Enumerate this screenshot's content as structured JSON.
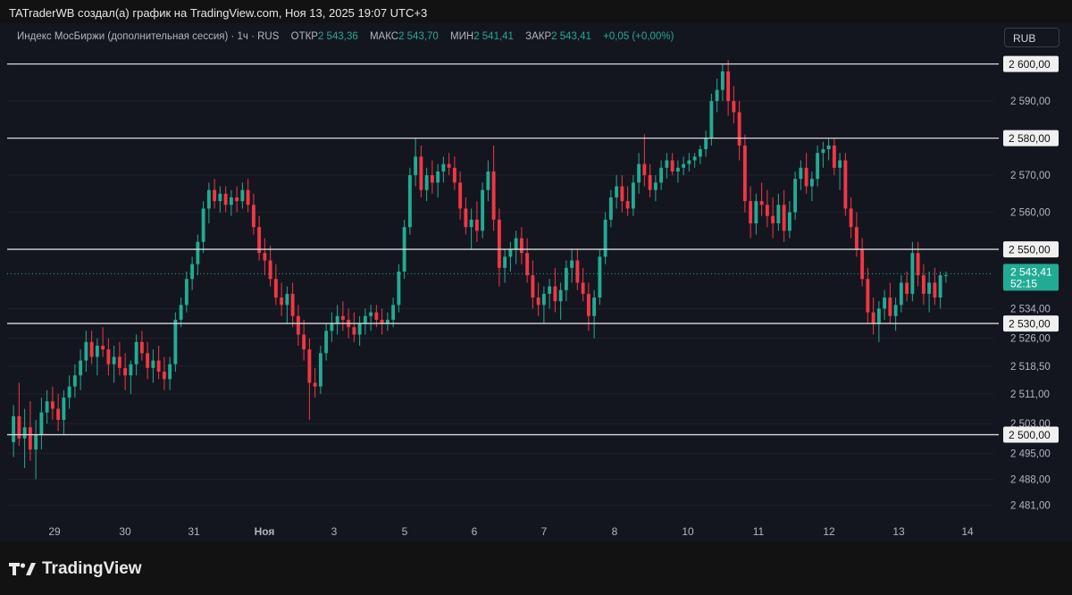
{
  "header": {
    "credit": "TATraderWB создал(а) график на TradingView.com, Ноя 13, 2025 19:07 UTC+3"
  },
  "legend": {
    "instrument": "Индекс МосБиржи (дополнительная сессия) · 1ч · RUS",
    "open_label": "ОТКР",
    "open_value": "2 543,36",
    "high_label": "МАКС",
    "high_value": "2 543,70",
    "low_label": "МИН",
    "low_value": "2 541,41",
    "close_label": "ЗАКР",
    "close_value": "2 543,41",
    "change": "+0,05 (+0,00%)"
  },
  "currency_button": "RUB",
  "brand": {
    "name": "TradingView",
    "logo_icon": "tradingview-logo-icon"
  },
  "colors": {
    "background": "#14161f",
    "up": "#22ab94",
    "down": "#f23645",
    "level_line": "#d9d9d9",
    "grid": "#1f222c",
    "axis_text": "#b2b5be"
  },
  "chart_data": {
    "type": "candlestick",
    "interval": "1ч",
    "ylim": [
      2477,
      2604
    ],
    "y_ticks": [
      "2 590,00",
      "2 570,00",
      "2 560,00",
      "2 534,00",
      "2 526,00",
      "2 518,50",
      "2 511,00",
      "2 503,00",
      "2 495,00",
      "2 488,00",
      "2 481,00"
    ],
    "x_ticks": [
      "29",
      "30",
      "31",
      "Ноя",
      "3",
      "5",
      "6",
      "7",
      "8",
      "10",
      "11",
      "12",
      "13",
      "14"
    ],
    "levels": [
      {
        "value": 2600,
        "label": "2 600,00"
      },
      {
        "value": 2580,
        "label": "2 580,00"
      },
      {
        "value": 2550,
        "label": "2 550,00"
      },
      {
        "value": 2530,
        "label": "2 530,00"
      },
      {
        "value": 2500,
        "label": "2 500,00"
      }
    ],
    "last_price": {
      "value": 2543.41,
      "label": "2 543,41",
      "countdown": "52:15"
    },
    "candles": [
      [
        2498,
        2508,
        2494,
        2505
      ],
      [
        2505,
        2514,
        2497,
        2499
      ],
      [
        2499,
        2507,
        2491,
        2502
      ],
      [
        2502,
        2509,
        2493,
        2496
      ],
      [
        2496,
        2504,
        2488,
        2500
      ],
      [
        2500,
        2510,
        2496,
        2506
      ],
      [
        2506,
        2512,
        2503,
        2509
      ],
      [
        2509,
        2513,
        2504,
        2507
      ],
      [
        2507,
        2511,
        2501,
        2504
      ],
      [
        2504,
        2512,
        2500,
        2510
      ],
      [
        2510,
        2516,
        2507,
        2513
      ],
      [
        2513,
        2519,
        2510,
        2516
      ],
      [
        2516,
        2523,
        2512,
        2520
      ],
      [
        2520,
        2528,
        2517,
        2525
      ],
      [
        2525,
        2528,
        2519,
        2521
      ],
      [
        2521,
        2526,
        2516,
        2524
      ],
      [
        2524,
        2529,
        2521,
        2523
      ],
      [
        2523,
        2526,
        2516,
        2519
      ],
      [
        2519,
        2524,
        2514,
        2521
      ],
      [
        2521,
        2525,
        2516,
        2518
      ],
      [
        2518,
        2522,
        2512,
        2516
      ],
      [
        2516,
        2520,
        2511,
        2519
      ],
      [
        2519,
        2527,
        2516,
        2525
      ],
      [
        2525,
        2528,
        2520,
        2522
      ],
      [
        2522,
        2525,
        2515,
        2518
      ],
      [
        2518,
        2523,
        2514,
        2520
      ],
      [
        2520,
        2524,
        2515,
        2517
      ],
      [
        2517,
        2521,
        2512,
        2515
      ],
      [
        2515,
        2521,
        2512,
        2519
      ],
      [
        2519,
        2533,
        2517,
        2531
      ],
      [
        2531,
        2537,
        2529,
        2535
      ],
      [
        2535,
        2544,
        2533,
        2542
      ],
      [
        2542,
        2548,
        2539,
        2546
      ],
      [
        2546,
        2554,
        2543,
        2552
      ],
      [
        2552,
        2563,
        2549,
        2561
      ],
      [
        2561,
        2568,
        2557,
        2566
      ],
      [
        2566,
        2569,
        2561,
        2563
      ],
      [
        2563,
        2567,
        2560,
        2565
      ],
      [
        2565,
        2567,
        2560,
        2562
      ],
      [
        2562,
        2566,
        2559,
        2564
      ],
      [
        2564,
        2567,
        2560,
        2563
      ],
      [
        2563,
        2568,
        2561,
        2566
      ],
      [
        2566,
        2569,
        2560,
        2562
      ],
      [
        2562,
        2565,
        2554,
        2556
      ],
      [
        2556,
        2559,
        2547,
        2549
      ],
      [
        2549,
        2553,
        2543,
        2547
      ],
      [
        2547,
        2551,
        2540,
        2542
      ],
      [
        2542,
        2546,
        2535,
        2537
      ],
      [
        2537,
        2541,
        2532,
        2535
      ],
      [
        2535,
        2540,
        2530,
        2538
      ],
      [
        2538,
        2541,
        2529,
        2532
      ],
      [
        2532,
        2535,
        2524,
        2527
      ],
      [
        2527,
        2531,
        2520,
        2523
      ],
      [
        2523,
        2526,
        2504,
        2514
      ],
      [
        2514,
        2518,
        2510,
        2513
      ],
      [
        2513,
        2524,
        2511,
        2522
      ],
      [
        2522,
        2530,
        2520,
        2528
      ],
      [
        2528,
        2533,
        2525,
        2530
      ],
      [
        2530,
        2535,
        2527,
        2532
      ],
      [
        2532,
        2536,
        2528,
        2531
      ],
      [
        2531,
        2534,
        2526,
        2529
      ],
      [
        2529,
        2533,
        2525,
        2527
      ],
      [
        2527,
        2532,
        2524,
        2530
      ],
      [
        2530,
        2534,
        2527,
        2532
      ],
      [
        2532,
        2535,
        2528,
        2533
      ],
      [
        2533,
        2535,
        2529,
        2531
      ],
      [
        2531,
        2534,
        2527,
        2530
      ],
      [
        2530,
        2533,
        2528,
        2531
      ],
      [
        2531,
        2537,
        2529,
        2535
      ],
      [
        2535,
        2546,
        2533,
        2544
      ],
      [
        2544,
        2558,
        2542,
        2556
      ],
      [
        2556,
        2572,
        2554,
        2570
      ],
      [
        2570,
        2580,
        2567,
        2575
      ],
      [
        2575,
        2578,
        2564,
        2566
      ],
      [
        2566,
        2572,
        2563,
        2570
      ],
      [
        2570,
        2574,
        2565,
        2568
      ],
      [
        2568,
        2573,
        2564,
        2571
      ],
      [
        2571,
        2575,
        2568,
        2573
      ],
      [
        2573,
        2576,
        2570,
        2572
      ],
      [
        2572,
        2575,
        2566,
        2568
      ],
      [
        2568,
        2571,
        2558,
        2561
      ],
      [
        2561,
        2564,
        2554,
        2556
      ],
      [
        2556,
        2561,
        2550,
        2558
      ],
      [
        2558,
        2563,
        2552,
        2555
      ],
      [
        2555,
        2568,
        2553,
        2566
      ],
      [
        2566,
        2574,
        2563,
        2571
      ],
      [
        2571,
        2578,
        2555,
        2558
      ],
      [
        2558,
        2561,
        2540,
        2545
      ],
      [
        2545,
        2550,
        2541,
        2548
      ],
      [
        2548,
        2552,
        2544,
        2550
      ],
      [
        2550,
        2555,
        2546,
        2553
      ],
      [
        2553,
        2556,
        2546,
        2549
      ],
      [
        2549,
        2553,
        2541,
        2543
      ],
      [
        2543,
        2547,
        2534,
        2537
      ],
      [
        2537,
        2541,
        2532,
        2535
      ],
      [
        2535,
        2540,
        2530,
        2538
      ],
      [
        2538,
        2542,
        2534,
        2540
      ],
      [
        2540,
        2545,
        2533,
        2536
      ],
      [
        2536,
        2541,
        2531,
        2539
      ],
      [
        2539,
        2547,
        2536,
        2545
      ],
      [
        2545,
        2550,
        2541,
        2547
      ],
      [
        2547,
        2550,
        2539,
        2541
      ],
      [
        2541,
        2545,
        2536,
        2538
      ],
      [
        2538,
        2541,
        2528,
        2532
      ],
      [
        2532,
        2539,
        2526,
        2537
      ],
      [
        2537,
        2550,
        2535,
        2548
      ],
      [
        2548,
        2560,
        2546,
        2558
      ],
      [
        2558,
        2566,
        2556,
        2564
      ],
      [
        2564,
        2570,
        2561,
        2567
      ],
      [
        2567,
        2570,
        2560,
        2563
      ],
      [
        2563,
        2567,
        2559,
        2561
      ],
      [
        2561,
        2570,
        2559,
        2568
      ],
      [
        2568,
        2576,
        2565,
        2573
      ],
      [
        2573,
        2581,
        2567,
        2570
      ],
      [
        2570,
        2573,
        2564,
        2566
      ],
      [
        2566,
        2570,
        2563,
        2568
      ],
      [
        2568,
        2574,
        2566,
        2572
      ],
      [
        2572,
        2576,
        2569,
        2574
      ],
      [
        2574,
        2576,
        2570,
        2571
      ],
      [
        2571,
        2574,
        2568,
        2572
      ],
      [
        2572,
        2575,
        2570,
        2573
      ],
      [
        2573,
        2576,
        2571,
        2574
      ],
      [
        2574,
        2576,
        2572,
        2575
      ],
      [
        2575,
        2578,
        2573,
        2577
      ],
      [
        2577,
        2582,
        2575,
        2580
      ],
      [
        2580,
        2592,
        2578,
        2590
      ],
      [
        2590,
        2596,
        2587,
        2593
      ],
      [
        2593,
        2600,
        2590,
        2598
      ],
      [
        2598,
        2601,
        2586,
        2590
      ],
      [
        2590,
        2594,
        2584,
        2587
      ],
      [
        2587,
        2590,
        2574,
        2578
      ],
      [
        2578,
        2581,
        2560,
        2563
      ],
      [
        2563,
        2567,
        2553,
        2557
      ],
      [
        2557,
        2565,
        2554,
        2563
      ],
      [
        2563,
        2568,
        2559,
        2562
      ],
      [
        2562,
        2566,
        2556,
        2559
      ],
      [
        2559,
        2564,
        2553,
        2557
      ],
      [
        2557,
        2565,
        2555,
        2562
      ],
      [
        2562,
        2566,
        2552,
        2555
      ],
      [
        2555,
        2563,
        2553,
        2560
      ],
      [
        2560,
        2571,
        2558,
        2569
      ],
      [
        2569,
        2574,
        2566,
        2572
      ],
      [
        2572,
        2576,
        2565,
        2567
      ],
      [
        2567,
        2571,
        2563,
        2569
      ],
      [
        2569,
        2578,
        2567,
        2576
      ],
      [
        2576,
        2579,
        2572,
        2577
      ],
      [
        2577,
        2580,
        2574,
        2578
      ],
      [
        2578,
        2580,
        2570,
        2572
      ],
      [
        2572,
        2576,
        2566,
        2574
      ],
      [
        2574,
        2576,
        2559,
        2561
      ],
      [
        2561,
        2564,
        2553,
        2556
      ],
      [
        2556,
        2560,
        2548,
        2550
      ],
      [
        2550,
        2553,
        2540,
        2542
      ],
      [
        2542,
        2545,
        2530,
        2533
      ],
      [
        2533,
        2537,
        2527,
        2530
      ],
      [
        2530,
        2536,
        2525,
        2534
      ],
      [
        2534,
        2539,
        2531,
        2537
      ],
      [
        2537,
        2541,
        2530,
        2532
      ],
      [
        2532,
        2537,
        2528,
        2535
      ],
      [
        2535,
        2543,
        2533,
        2541
      ],
      [
        2541,
        2544,
        2536,
        2538
      ],
      [
        2538,
        2552,
        2536,
        2549
      ],
      [
        2549,
        2552,
        2540,
        2543
      ],
      [
        2543,
        2546,
        2535,
        2538
      ],
      [
        2538,
        2544,
        2533,
        2541
      ],
      [
        2541,
        2545,
        2535,
        2537
      ],
      [
        2537,
        2544,
        2534,
        2543
      ],
      [
        2543,
        2544,
        2541,
        2543
      ]
    ]
  }
}
